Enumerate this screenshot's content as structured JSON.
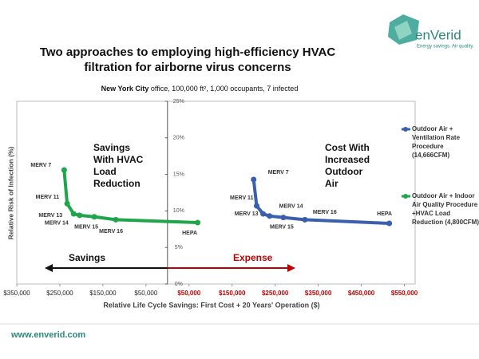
{
  "chart_data": {
    "type": "line",
    "title": [
      "Two approaches to employing high-efficiency HVAC",
      "filtration for airborne virus concerns"
    ],
    "subtitle_bold": "New York City",
    "subtitle": " office, 100,000 ft², 1,000 occupants, 7 infected",
    "ylabel": "Relative Risk of Infection (%)",
    "xlabel": "Relative Life Cycle Savings: First Cost + 20 Years' Operation ($)",
    "xlim": [
      -350000,
      575000
    ],
    "ylim": [
      0,
      25
    ],
    "xticks": [
      {
        "value": -350000,
        "label": "$350,000"
      },
      {
        "value": -250000,
        "label": "$250,000"
      },
      {
        "value": -150000,
        "label": "$150,000"
      },
      {
        "value": -50000,
        "label": "$50,000"
      },
      {
        "value": 50000,
        "label": "$50,000"
      },
      {
        "value": 150000,
        "label": "$150,000"
      },
      {
        "value": 250000,
        "label": "$250,000"
      },
      {
        "value": 350000,
        "label": "$350,000"
      },
      {
        "value": 450000,
        "label": "$450,000"
      },
      {
        "value": 550000,
        "label": "$550,000"
      }
    ],
    "yticks": [
      {
        "value": 0,
        "label": "0%"
      },
      {
        "value": 5,
        "label": "5%"
      },
      {
        "value": 10,
        "label": "10%"
      },
      {
        "value": 15,
        "label": "15%"
      },
      {
        "value": 20,
        "label": "20%"
      },
      {
        "value": 25,
        "label": "25%"
      }
    ],
    "expense_color": "#c00000",
    "series": [
      {
        "name": "Outdoor Air + Ventilation Rate Procedure (14,666CFM)",
        "color": "#3a5fad",
        "x": [
          200000,
          207000,
          222000,
          237000,
          269000,
          319000,
          515000
        ],
        "values": [
          14.3,
          10.7,
          9.6,
          9.3,
          9.1,
          8.8,
          8.3
        ],
        "point_labels": [
          "MERV 7",
          "MERV 11",
          "MERV 13",
          "MERV 14",
          "MERV 15",
          "MERV 16",
          "HEPA"
        ]
      },
      {
        "name": "Outdoor Air + Indoor Air Quality Procedure +HVAC Load Reduction (4,800CFM)",
        "color": "#1fa64a",
        "x": [
          -240000,
          -233000,
          -218000,
          -204000,
          -170000,
          -120000,
          70000
        ],
        "values": [
          15.6,
          11.0,
          9.6,
          9.4,
          9.2,
          8.8,
          8.4
        ],
        "point_labels": [
          "MERV 7",
          "MERV 11",
          "MERV 13",
          "MERV 14",
          "MERV 15",
          "MERV 16",
          "HEPA"
        ]
      }
    ],
    "annotations": [
      [
        "Savings",
        "With HVAC",
        "Load",
        "Reduction"
      ],
      [
        "Cost With",
        "Increased",
        "Outdoor",
        "Air"
      ]
    ],
    "arrow_labels": [
      "Savings",
      "Expense"
    ]
  },
  "logo": {
    "name": "enVerid",
    "tagline": "Energy savings. Air quality."
  },
  "footer": "www.enverid.com"
}
